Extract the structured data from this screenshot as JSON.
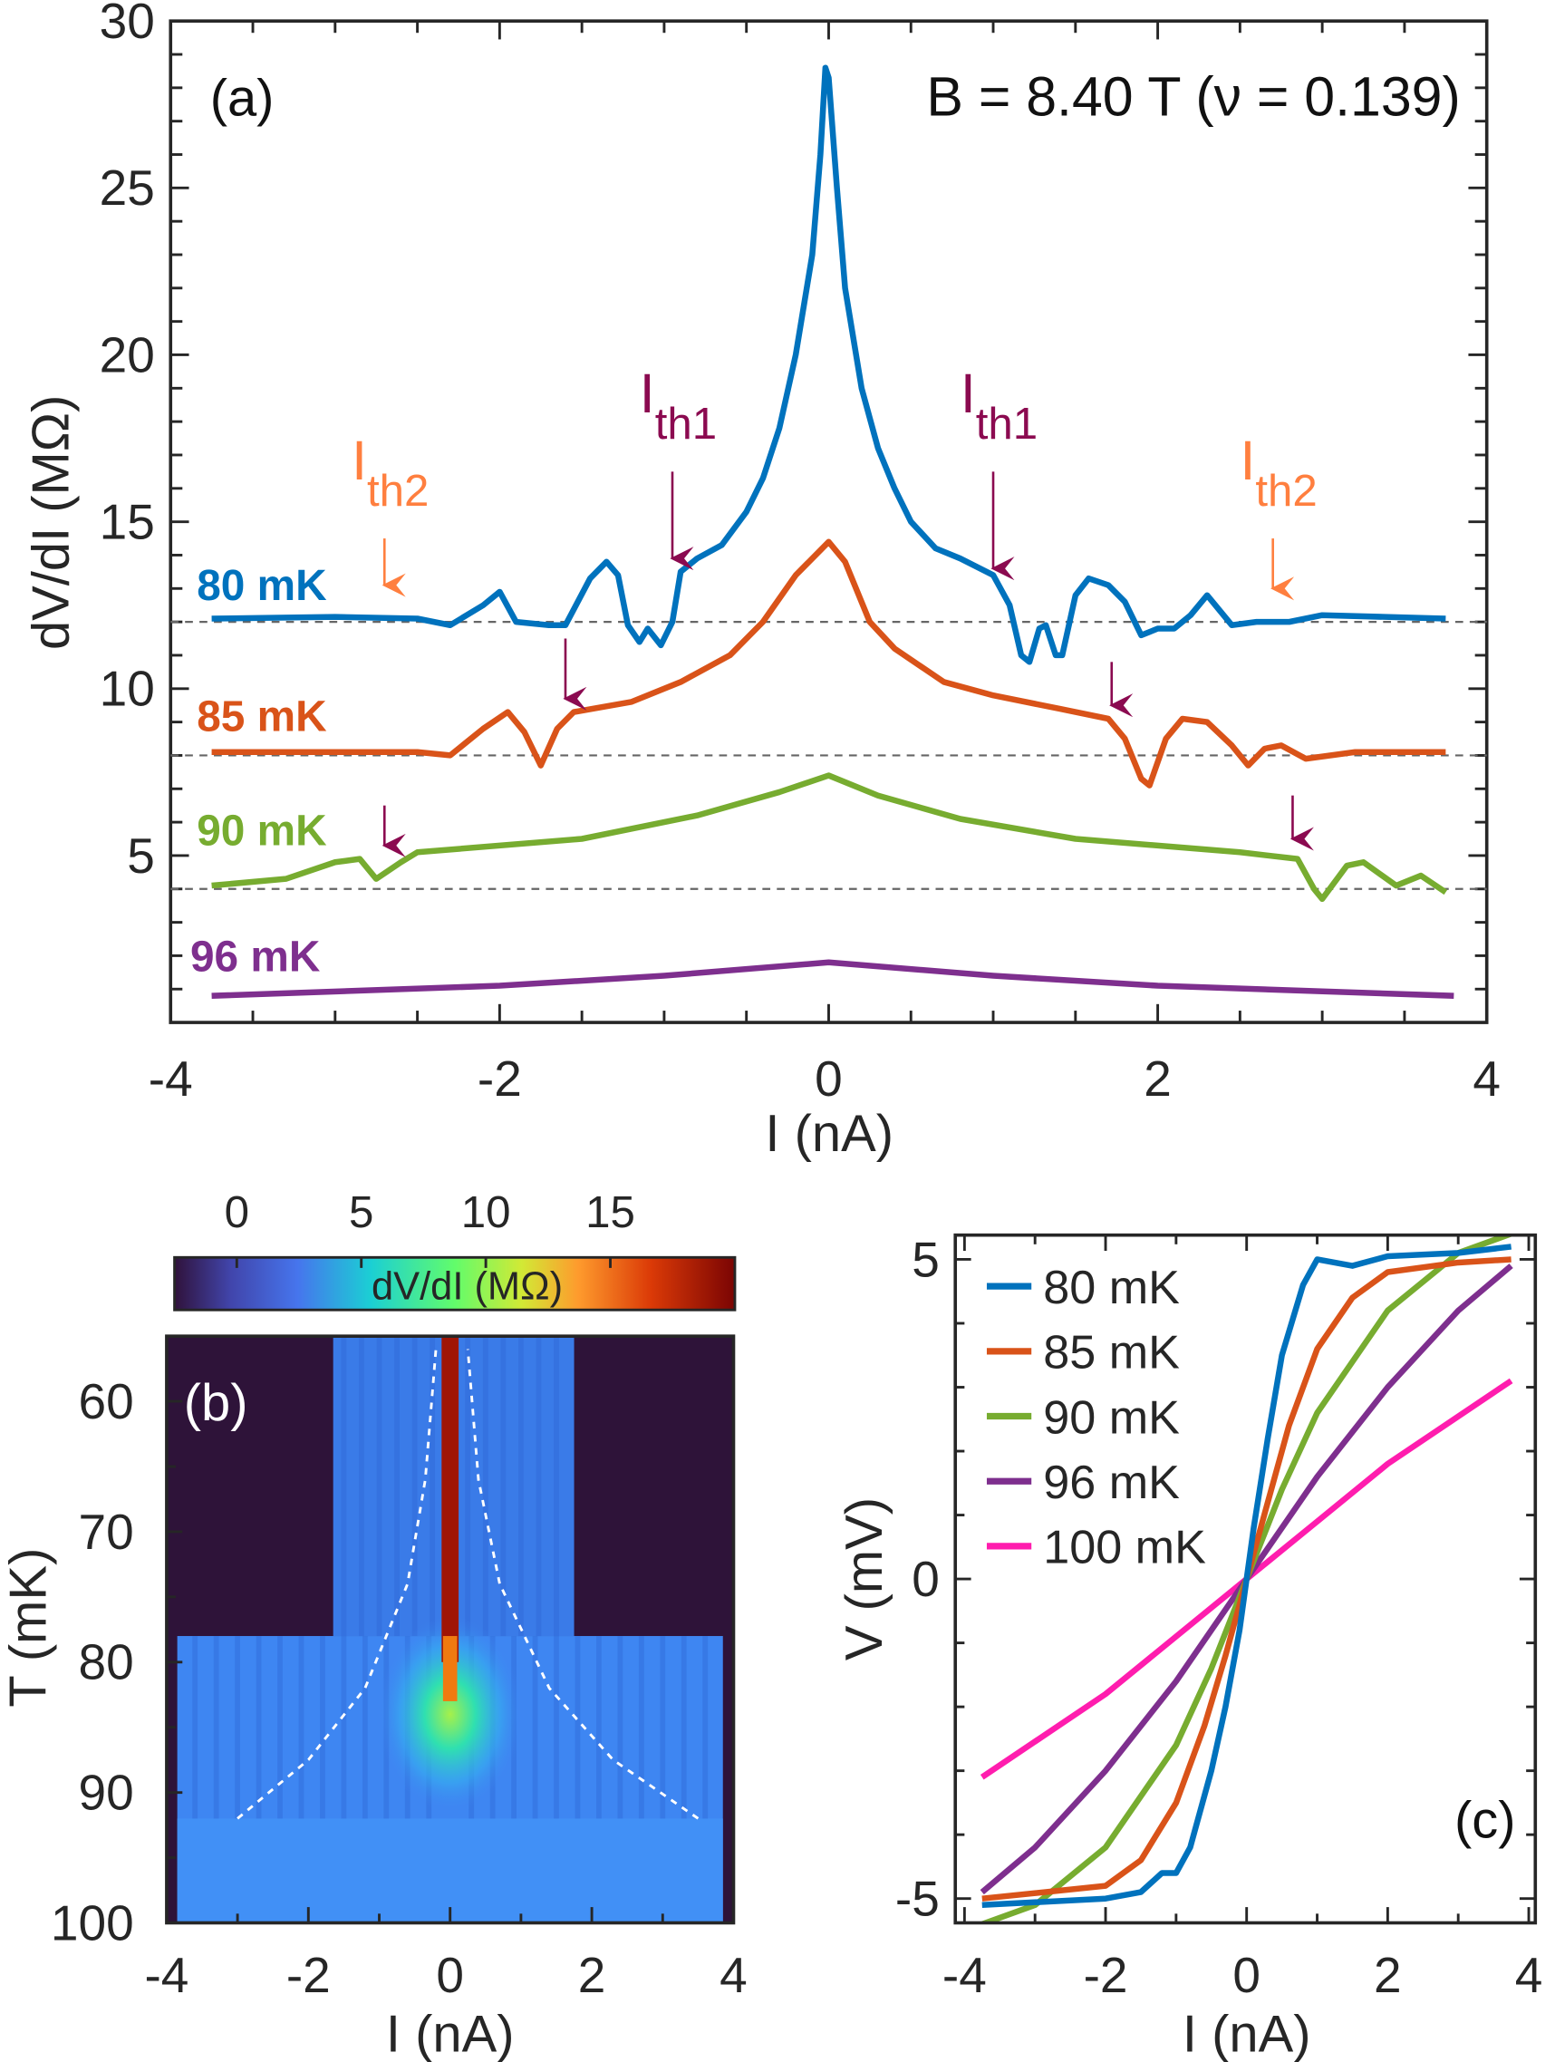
{
  "chart_data": [
    {
      "type": "line",
      "panel_label": "(a)",
      "annotation": "B = 8.40 T (ν = 0.139)",
      "xlabel": "I (nA)",
      "ylabel": "dV/dI (MΩ)",
      "xlim": [
        -4,
        4
      ],
      "ylim": [
        0,
        30
      ],
      "xticks": [
        "-4",
        "-2",
        "0",
        "2",
        "4"
      ],
      "yticks": [
        "5",
        "10",
        "15",
        "20",
        "25",
        "30"
      ],
      "baselines": [
        12,
        8,
        4
      ],
      "series": [
        {
          "name": "80 mK",
          "color": "#0072BD",
          "points": [
            [
              -3.75,
              12.1
            ],
            [
              -3.0,
              12.15
            ],
            [
              -2.5,
              12.1
            ],
            [
              -2.3,
              11.9
            ],
            [
              -2.1,
              12.5
            ],
            [
              -2.0,
              12.9
            ],
            [
              -1.9,
              12.0
            ],
            [
              -1.7,
              11.9
            ],
            [
              -1.6,
              11.9
            ],
            [
              -1.45,
              13.3
            ],
            [
              -1.35,
              13.8
            ],
            [
              -1.28,
              13.4
            ],
            [
              -1.22,
              11.9
            ],
            [
              -1.15,
              11.4
            ],
            [
              -1.1,
              11.8
            ],
            [
              -1.02,
              11.3
            ],
            [
              -0.95,
              12.0
            ],
            [
              -0.9,
              13.5
            ],
            [
              -0.8,
              13.9
            ],
            [
              -0.65,
              14.3
            ],
            [
              -0.5,
              15.3
            ],
            [
              -0.4,
              16.3
            ],
            [
              -0.3,
              17.8
            ],
            [
              -0.2,
              20.0
            ],
            [
              -0.1,
              23.0
            ],
            [
              -0.05,
              26.0
            ],
            [
              -0.02,
              28.6
            ],
            [
              0,
              28.3
            ],
            [
              0.05,
              25.0
            ],
            [
              0.1,
              22.0
            ],
            [
              0.2,
              19.0
            ],
            [
              0.3,
              17.2
            ],
            [
              0.4,
              16.0
            ],
            [
              0.5,
              15.0
            ],
            [
              0.65,
              14.2
            ],
            [
              0.8,
              13.9
            ],
            [
              1.0,
              13.4
            ],
            [
              1.1,
              12.5
            ],
            [
              1.17,
              11.0
            ],
            [
              1.22,
              10.8
            ],
            [
              1.28,
              11.8
            ],
            [
              1.32,
              11.9
            ],
            [
              1.38,
              11.0
            ],
            [
              1.42,
              11.0
            ],
            [
              1.5,
              12.8
            ],
            [
              1.58,
              13.3
            ],
            [
              1.7,
              13.1
            ],
            [
              1.8,
              12.6
            ],
            [
              1.9,
              11.6
            ],
            [
              2.0,
              11.8
            ],
            [
              2.1,
              11.8
            ],
            [
              2.2,
              12.2
            ],
            [
              2.3,
              12.8
            ],
            [
              2.45,
              11.9
            ],
            [
              2.6,
              12.0
            ],
            [
              2.8,
              12.0
            ],
            [
              3.0,
              12.2
            ],
            [
              3.75,
              12.1
            ]
          ]
        },
        {
          "name": "85 mK",
          "color": "#D95319",
          "points": [
            [
              -3.75,
              8.1
            ],
            [
              -2.5,
              8.1
            ],
            [
              -2.3,
              8.0
            ],
            [
              -2.1,
              8.8
            ],
            [
              -1.95,
              9.3
            ],
            [
              -1.85,
              8.7
            ],
            [
              -1.75,
              7.7
            ],
            [
              -1.65,
              8.8
            ],
            [
              -1.55,
              9.3
            ],
            [
              -1.2,
              9.6
            ],
            [
              -0.9,
              10.2
            ],
            [
              -0.6,
              11.0
            ],
            [
              -0.4,
              12.0
            ],
            [
              -0.2,
              13.4
            ],
            [
              0,
              14.4
            ],
            [
              0.1,
              13.8
            ],
            [
              0.25,
              12.0
            ],
            [
              0.4,
              11.2
            ],
            [
              0.7,
              10.2
            ],
            [
              1.0,
              9.8
            ],
            [
              1.4,
              9.4
            ],
            [
              1.7,
              9.1
            ],
            [
              1.8,
              8.5
            ],
            [
              1.9,
              7.3
            ],
            [
              1.95,
              7.1
            ],
            [
              2.05,
              8.5
            ],
            [
              2.15,
              9.1
            ],
            [
              2.3,
              9.0
            ],
            [
              2.45,
              8.3
            ],
            [
              2.55,
              7.7
            ],
            [
              2.65,
              8.2
            ],
            [
              2.75,
              8.3
            ],
            [
              2.9,
              7.9
            ],
            [
              3.2,
              8.1
            ],
            [
              3.75,
              8.1
            ]
          ]
        },
        {
          "name": "90 mK",
          "color": "#77AC30",
          "points": [
            [
              -3.75,
              4.1
            ],
            [
              -3.3,
              4.3
            ],
            [
              -3.0,
              4.8
            ],
            [
              -2.85,
              4.9
            ],
            [
              -2.75,
              4.3
            ],
            [
              -2.6,
              4.8
            ],
            [
              -2.5,
              5.1
            ],
            [
              -1.5,
              5.5
            ],
            [
              -0.8,
              6.2
            ],
            [
              -0.3,
              6.9
            ],
            [
              0,
              7.4
            ],
            [
              0.3,
              6.8
            ],
            [
              0.8,
              6.1
            ],
            [
              1.5,
              5.5
            ],
            [
              2.5,
              5.1
            ],
            [
              2.85,
              4.9
            ],
            [
              2.95,
              4.0
            ],
            [
              3.0,
              3.7
            ],
            [
              3.15,
              4.7
            ],
            [
              3.25,
              4.8
            ],
            [
              3.45,
              4.1
            ],
            [
              3.6,
              4.4
            ],
            [
              3.75,
              3.9
            ]
          ]
        },
        {
          "name": "96 mK",
          "color": "#7E2F8E",
          "points": [
            [
              -3.75,
              0.8
            ],
            [
              -2,
              1.1
            ],
            [
              -1,
              1.4
            ],
            [
              0,
              1.8
            ],
            [
              1,
              1.4
            ],
            [
              2,
              1.1
            ],
            [
              3.8,
              0.8
            ]
          ]
        }
      ],
      "arrows": [
        {
          "label": "I",
          "sub": "th2",
          "color": "#FF7F3F",
          "x": -2.7,
          "from": 14.5,
          "to": 13.1
        },
        {
          "label": "I",
          "sub": "th1",
          "color": "#8B0A50",
          "x": -0.95,
          "from": 16.5,
          "to": 13.9
        },
        {
          "label": "I",
          "sub": "th1",
          "color": "#8B0A50",
          "x": 1.0,
          "from": 16.5,
          "to": 13.6
        },
        {
          "label": "I",
          "sub": "th2",
          "color": "#FF7F3F",
          "x": 2.7,
          "from": 14.5,
          "to": 13.0
        },
        {
          "color": "#8B0A50",
          "x": -1.6,
          "from": 11.5,
          "to": 9.7
        },
        {
          "color": "#8B0A50",
          "x": 1.72,
          "from": 10.8,
          "to": 9.5
        },
        {
          "color": "#8B0A50",
          "x": -2.7,
          "from": 6.5,
          "to": 5.3
        },
        {
          "color": "#8B0A50",
          "x": 2.82,
          "from": 6.8,
          "to": 5.5
        }
      ]
    },
    {
      "type": "heatmap",
      "panel_label": "(b)",
      "xlabel": "I (nA)",
      "ylabel": "T (mK)",
      "xlim": [
        -4,
        4
      ],
      "ylim": [
        100,
        55
      ],
      "xticks": [
        "-4",
        "-2",
        "0",
        "2",
        "4"
      ],
      "yticks": [
        "60",
        "70",
        "80",
        "90",
        "100"
      ],
      "colorbar": {
        "label": "dV/dI (MΩ)",
        "ticks": [
          "0",
          "5",
          "10",
          "15"
        ],
        "range": [
          -2.5,
          20
        ],
        "colormap": "turbo"
      },
      "threshold_fit": [
        [
          [
            -3.0,
            92
          ],
          [
            -2.0,
            87.5
          ],
          [
            -1.2,
            82
          ],
          [
            -0.6,
            74
          ],
          [
            -0.35,
            66
          ],
          [
            -0.2,
            56
          ]
        ],
        [
          [
            3.5,
            92
          ],
          [
            2.3,
            87.5
          ],
          [
            1.4,
            82
          ],
          [
            0.7,
            74
          ],
          [
            0.4,
            66
          ],
          [
            0.25,
            56
          ]
        ]
      ]
    },
    {
      "type": "line",
      "panel_label": "(c)",
      "xlabel": "I (nA)",
      "ylabel": "V (mV)",
      "xlim": [
        -4,
        4
      ],
      "ylim": [
        -5.2,
        5.2
      ],
      "xticks": [
        "-4",
        "-2",
        "0",
        "2",
        "4"
      ],
      "yticks": [
        "-5",
        "0",
        "5"
      ],
      "legend": "top-left",
      "series": [
        {
          "name": "80 mK",
          "color": "#0072BD",
          "points": [
            [
              -3.75,
              -5.1
            ],
            [
              -2.0,
              -5.0
            ],
            [
              -1.5,
              -4.9
            ],
            [
              -1.2,
              -4.6
            ],
            [
              -1.0,
              -4.6
            ],
            [
              -0.8,
              -4.2
            ],
            [
              -0.5,
              -3.0
            ],
            [
              -0.3,
              -2.0
            ],
            [
              -0.1,
              -0.8
            ],
            [
              0,
              0
            ],
            [
              0.1,
              0.8
            ],
            [
              0.3,
              2.2
            ],
            [
              0.5,
              3.5
            ],
            [
              0.8,
              4.6
            ],
            [
              1.0,
              5.0
            ],
            [
              1.5,
              4.9
            ],
            [
              2.0,
              5.05
            ],
            [
              3.0,
              5.1
            ],
            [
              3.75,
              5.2
            ]
          ]
        },
        {
          "name": "85 mK",
          "color": "#D95319",
          "points": [
            [
              -3.75,
              -5.0
            ],
            [
              -2,
              -4.8
            ],
            [
              -1.5,
              -4.4
            ],
            [
              -1.0,
              -3.5
            ],
            [
              -0.6,
              -2.3
            ],
            [
              -0.3,
              -1.2
            ],
            [
              0,
              0
            ],
            [
              0.3,
              1.2
            ],
            [
              0.6,
              2.4
            ],
            [
              1.0,
              3.6
            ],
            [
              1.5,
              4.4
            ],
            [
              2,
              4.8
            ],
            [
              3,
              4.95
            ],
            [
              3.75,
              5.0
            ]
          ]
        },
        {
          "name": "90 mK",
          "color": "#77AC30",
          "points": [
            [
              -3.75,
              -5.4
            ],
            [
              -3,
              -5.1
            ],
            [
              -2,
              -4.2
            ],
            [
              -1,
              -2.6
            ],
            [
              -0.5,
              -1.4
            ],
            [
              0,
              0
            ],
            [
              0.5,
              1.4
            ],
            [
              1,
              2.6
            ],
            [
              2,
              4.2
            ],
            [
              3,
              5.1
            ],
            [
              3.75,
              5.4
            ]
          ]
        },
        {
          "name": "96 mK",
          "color": "#7E2F8E",
          "points": [
            [
              -3.75,
              -4.9
            ],
            [
              -3,
              -4.2
            ],
            [
              -2,
              -3.0
            ],
            [
              -1,
              -1.6
            ],
            [
              0,
              0
            ],
            [
              1,
              1.6
            ],
            [
              2,
              3.0
            ],
            [
              3,
              4.2
            ],
            [
              3.75,
              4.9
            ]
          ]
        },
        {
          "name": "100 mK",
          "color": "#FF1DAE",
          "points": [
            [
              -3.75,
              -3.1
            ],
            [
              -2,
              -1.8
            ],
            [
              -1,
              -0.9
            ],
            [
              0,
              0
            ],
            [
              1,
              0.9
            ],
            [
              2,
              1.8
            ],
            [
              3.75,
              3.1
            ]
          ]
        }
      ]
    }
  ]
}
